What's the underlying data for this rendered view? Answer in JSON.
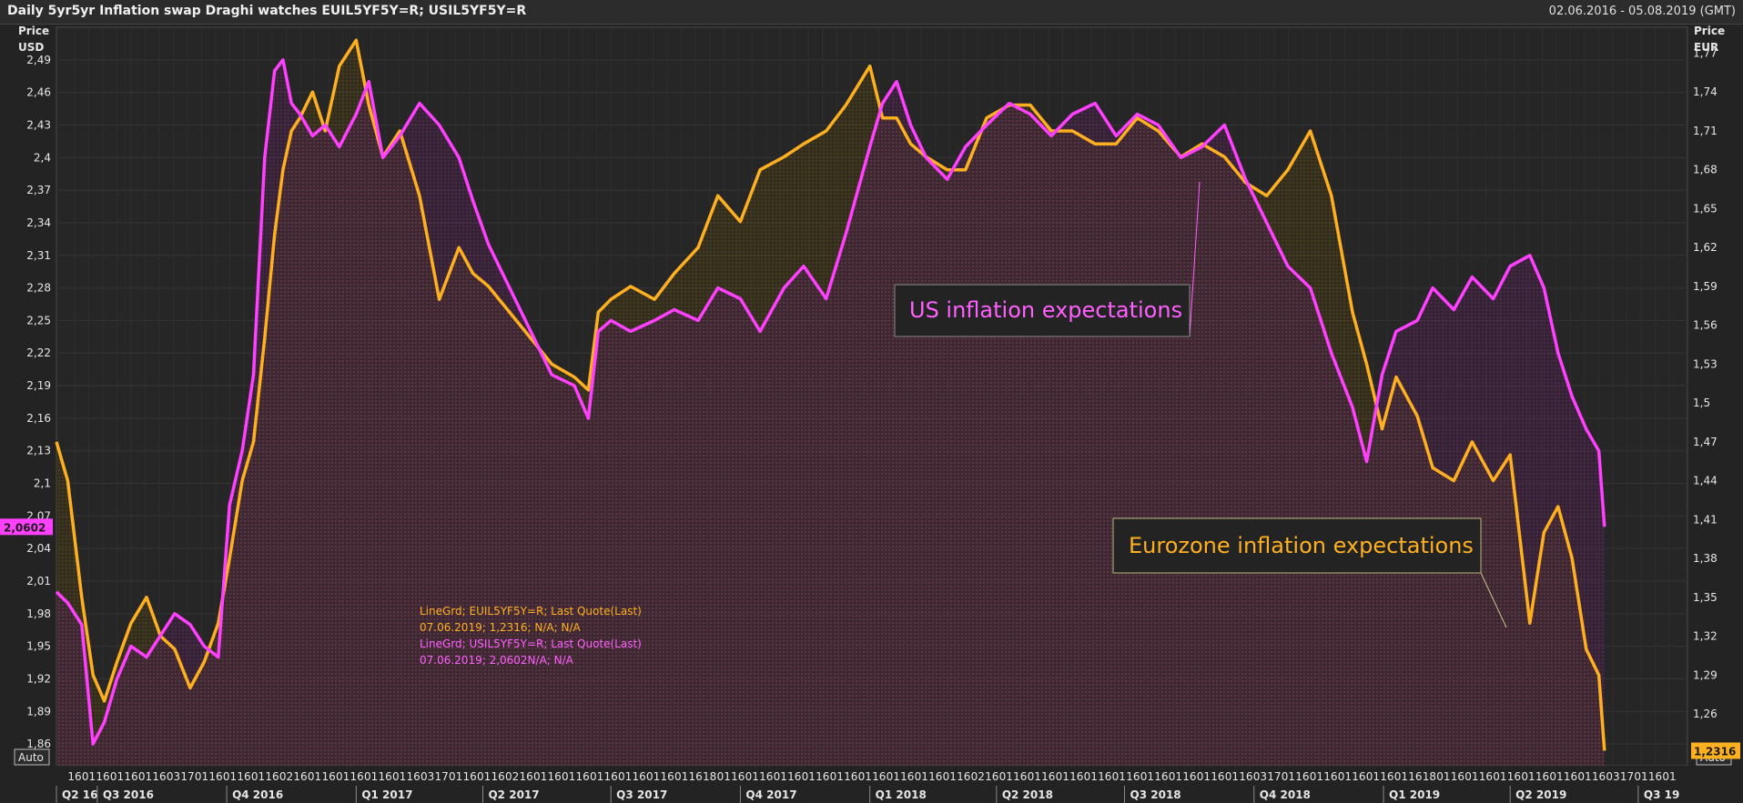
{
  "header": {
    "title": "Daily 5yr5yr Inflation swap Draghi watches EUIL5YF5Y=R; USIL5YF5Y=R",
    "date_range": "02.06.2016 - 05.08.2019 (GMT)"
  },
  "axes": {
    "left_label_1": "Price",
    "left_label_2": "USD",
    "right_label_1": "Price",
    "right_label_2": "EUR",
    "auto_left": "Auto",
    "auto_right": "Auto"
  },
  "legend": {
    "eu_line1": "LineGrd; EUIL5YF5Y=R; Last Quote(Last)",
    "eu_line2": "07.06.2019; 1,2316; N/A; N/A",
    "us_line1": "LineGrd; USIL5YF5Y=R; Last Quote(Last)",
    "us_line2": "07.06.2019; 2,0602N/A; N/A"
  },
  "annotations": {
    "us": "US inflation expectations",
    "eu": "Eurozone inflation expectations"
  },
  "colors": {
    "background": "#232323",
    "grid": "#3a3a3a",
    "us_series": "#ff40ff",
    "eu_series": "#ffb020",
    "axis_text": "#e6e6e6"
  },
  "chart_data": {
    "type": "line",
    "title": "Daily 5yr5yr Inflation swap Draghi watches EUIL5YF5Y=R; USIL5YF5Y=R",
    "y_left": {
      "label": "Price USD",
      "range": [
        1.84,
        2.52
      ],
      "ticks": [
        "1,86",
        "1,89",
        "1,92",
        "1,95",
        "1,98",
        "2,01",
        "2,04",
        "2,07",
        "2,1",
        "2,13",
        "2,16",
        "2,19",
        "2,22",
        "2,25",
        "2,28",
        "2,31",
        "2,34",
        "2,37",
        "2,4",
        "2,43",
        "2,46",
        "2,49"
      ]
    },
    "y_right": {
      "label": "Price EUR",
      "range": [
        1.22,
        1.79
      ],
      "ticks": [
        "1,26",
        "1,29",
        "1,32",
        "1,35",
        "1,38",
        "1,41",
        "1,44",
        "1,47",
        "1,5",
        "1,53",
        "1,56",
        "1,59",
        "1,62",
        "1,65",
        "1,68",
        "1,71",
        "1,74",
        "1,77"
      ]
    },
    "x_range": [
      "2016-06-02",
      "2019-08-05"
    ],
    "x_day_ticks": [
      "16",
      "01",
      "16",
      "01",
      "16",
      "01",
      "16",
      "03",
      "17",
      "01",
      "16",
      "01",
      "16",
      "01",
      "16",
      "02",
      "16",
      "01",
      "16",
      "01",
      "16",
      "01",
      "16",
      "01",
      "16",
      "03",
      "17",
      "01",
      "16",
      "01",
      "16",
      "02",
      "16",
      "01",
      "16",
      "01",
      "16",
      "01",
      "16",
      "01",
      "16",
      "01",
      "16",
      "01",
      "16",
      "18",
      "01",
      "16",
      "01",
      "16",
      "01",
      "16",
      "01",
      "16",
      "01",
      "16",
      "01",
      "16",
      "01",
      "16",
      "01",
      "16",
      "01",
      "16",
      "02",
      "16",
      "01",
      "16",
      "01",
      "16",
      "01",
      "16",
      "01",
      "16",
      "01",
      "16",
      "01",
      "16",
      "01",
      "16",
      "01",
      "16",
      "01",
      "16",
      "03",
      "17",
      "01",
      "16",
      "01",
      "16",
      "01",
      "16",
      "01",
      "16",
      "01",
      "16",
      "18",
      "01",
      "16",
      "01",
      "16",
      "01",
      "16",
      "01",
      "16",
      "01",
      "16",
      "01",
      "16",
      "03",
      "17",
      "01",
      "16",
      "01"
    ],
    "x_quarter_ticks": [
      {
        "label": "Q2 16",
        "date": "2016-06-02"
      },
      {
        "label": "Q3 2016",
        "date": "2016-07-01"
      },
      {
        "label": "Q4 2016",
        "date": "2016-10-01"
      },
      {
        "label": "Q1 2017",
        "date": "2017-01-01"
      },
      {
        "label": "Q2 2017",
        "date": "2017-04-01"
      },
      {
        "label": "Q3 2017",
        "date": "2017-07-01"
      },
      {
        "label": "Q4 2017",
        "date": "2017-10-01"
      },
      {
        "label": "Q1 2018",
        "date": "2018-01-01"
      },
      {
        "label": "Q2 2018",
        "date": "2018-04-01"
      },
      {
        "label": "Q3 2018",
        "date": "2018-07-01"
      },
      {
        "label": "Q4 2018",
        "date": "2018-10-01"
      },
      {
        "label": "Q1 2019",
        "date": "2019-01-01"
      },
      {
        "label": "Q2 2019",
        "date": "2019-04-01"
      },
      {
        "label": "Q3 19",
        "date": "2019-07-01"
      }
    ],
    "last_values": {
      "us": "2,0602",
      "eu": "1,2316"
    },
    "series": [
      {
        "name": "USIL5YF5Y=R",
        "axis": "left",
        "dates": [
          "2016-06-02",
          "2016-06-10",
          "2016-06-20",
          "2016-06-28",
          "2016-07-06",
          "2016-07-15",
          "2016-07-25",
          "2016-08-05",
          "2016-08-15",
          "2016-08-25",
          "2016-09-05",
          "2016-09-15",
          "2016-09-25",
          "2016-10-03",
          "2016-10-12",
          "2016-10-20",
          "2016-10-28",
          "2016-11-04",
          "2016-11-10",
          "2016-11-16",
          "2016-11-22",
          "2016-12-01",
          "2016-12-10",
          "2016-12-20",
          "2017-01-01",
          "2017-01-10",
          "2017-01-20",
          "2017-02-01",
          "2017-02-15",
          "2017-03-01",
          "2017-03-15",
          "2017-03-25",
          "2017-04-05",
          "2017-04-20",
          "2017-05-05",
          "2017-05-20",
          "2017-06-05",
          "2017-06-15",
          "2017-06-22",
          "2017-07-01",
          "2017-07-15",
          "2017-08-01",
          "2017-08-15",
          "2017-09-01",
          "2017-09-15",
          "2017-10-01",
          "2017-10-15",
          "2017-11-01",
          "2017-11-15",
          "2017-12-01",
          "2017-12-15",
          "2018-01-01",
          "2018-01-10",
          "2018-01-20",
          "2018-01-30",
          "2018-02-10",
          "2018-02-25",
          "2018-03-10",
          "2018-03-25",
          "2018-04-10",
          "2018-04-25",
          "2018-05-10",
          "2018-05-25",
          "2018-06-10",
          "2018-06-25",
          "2018-07-10",
          "2018-07-25",
          "2018-08-10",
          "2018-08-25",
          "2018-09-10",
          "2018-09-25",
          "2018-10-10",
          "2018-10-25",
          "2018-11-10",
          "2018-11-25",
          "2018-12-10",
          "2018-12-20",
          "2018-12-31",
          "2019-01-10",
          "2019-01-25",
          "2019-02-05",
          "2019-02-20",
          "2019-03-05",
          "2019-03-20",
          "2019-04-01",
          "2019-04-15",
          "2019-04-25",
          "2019-05-05",
          "2019-05-15",
          "2019-05-25",
          "2019-06-03",
          "2019-06-07"
        ],
        "values": [
          2.0,
          1.99,
          1.97,
          1.86,
          1.88,
          1.92,
          1.95,
          1.94,
          1.96,
          1.98,
          1.97,
          1.95,
          1.94,
          2.08,
          2.13,
          2.2,
          2.4,
          2.48,
          2.49,
          2.45,
          2.44,
          2.42,
          2.43,
          2.41,
          2.44,
          2.47,
          2.4,
          2.42,
          2.45,
          2.43,
          2.4,
          2.36,
          2.32,
          2.28,
          2.24,
          2.2,
          2.19,
          2.16,
          2.24,
          2.25,
          2.24,
          2.25,
          2.26,
          2.25,
          2.28,
          2.27,
          2.24,
          2.28,
          2.3,
          2.27,
          2.33,
          2.41,
          2.45,
          2.47,
          2.43,
          2.4,
          2.38,
          2.41,
          2.43,
          2.45,
          2.44,
          2.42,
          2.44,
          2.45,
          2.42,
          2.44,
          2.43,
          2.4,
          2.41,
          2.43,
          2.38,
          2.34,
          2.3,
          2.28,
          2.22,
          2.17,
          2.12,
          2.2,
          2.24,
          2.25,
          2.28,
          2.26,
          2.29,
          2.27,
          2.3,
          2.31,
          2.28,
          2.22,
          2.18,
          2.15,
          2.13,
          2.06
        ]
      },
      {
        "name": "EUIL5YF5Y=R",
        "axis": "right",
        "dates": [
          "2016-06-02",
          "2016-06-10",
          "2016-06-20",
          "2016-06-28",
          "2016-07-06",
          "2016-07-15",
          "2016-07-25",
          "2016-08-05",
          "2016-08-15",
          "2016-08-25",
          "2016-09-05",
          "2016-09-15",
          "2016-09-25",
          "2016-10-03",
          "2016-10-12",
          "2016-10-20",
          "2016-10-28",
          "2016-11-04",
          "2016-11-10",
          "2016-11-16",
          "2016-11-22",
          "2016-12-01",
          "2016-12-10",
          "2016-12-20",
          "2017-01-01",
          "2017-01-10",
          "2017-01-20",
          "2017-02-01",
          "2017-02-15",
          "2017-03-01",
          "2017-03-15",
          "2017-03-25",
          "2017-04-05",
          "2017-04-20",
          "2017-05-05",
          "2017-05-20",
          "2017-06-05",
          "2017-06-15",
          "2017-06-22",
          "2017-07-01",
          "2017-07-15",
          "2017-08-01",
          "2017-08-15",
          "2017-09-01",
          "2017-09-15",
          "2017-10-01",
          "2017-10-15",
          "2017-11-01",
          "2017-11-15",
          "2017-12-01",
          "2017-12-15",
          "2018-01-01",
          "2018-01-10",
          "2018-01-20",
          "2018-01-30",
          "2018-02-10",
          "2018-02-25",
          "2018-03-10",
          "2018-03-25",
          "2018-04-10",
          "2018-04-25",
          "2018-05-10",
          "2018-05-25",
          "2018-06-10",
          "2018-06-25",
          "2018-07-10",
          "2018-07-25",
          "2018-08-10",
          "2018-08-25",
          "2018-09-10",
          "2018-09-25",
          "2018-10-10",
          "2018-10-25",
          "2018-11-10",
          "2018-11-25",
          "2018-12-10",
          "2018-12-20",
          "2018-12-31",
          "2019-01-10",
          "2019-01-25",
          "2019-02-05",
          "2019-02-20",
          "2019-03-05",
          "2019-03-20",
          "2019-04-01",
          "2019-04-15",
          "2019-04-25",
          "2019-05-05",
          "2019-05-15",
          "2019-05-25",
          "2019-06-03",
          "2019-06-07"
        ],
        "values": [
          1.47,
          1.44,
          1.35,
          1.29,
          1.27,
          1.3,
          1.33,
          1.35,
          1.32,
          1.31,
          1.28,
          1.3,
          1.33,
          1.38,
          1.44,
          1.47,
          1.55,
          1.63,
          1.68,
          1.71,
          1.72,
          1.74,
          1.71,
          1.76,
          1.78,
          1.73,
          1.69,
          1.71,
          1.66,
          1.58,
          1.62,
          1.6,
          1.59,
          1.57,
          1.55,
          1.53,
          1.52,
          1.51,
          1.57,
          1.58,
          1.59,
          1.58,
          1.6,
          1.62,
          1.66,
          1.64,
          1.68,
          1.69,
          1.7,
          1.71,
          1.73,
          1.76,
          1.72,
          1.72,
          1.7,
          1.69,
          1.68,
          1.68,
          1.72,
          1.73,
          1.73,
          1.71,
          1.71,
          1.7,
          1.7,
          1.72,
          1.71,
          1.69,
          1.7,
          1.69,
          1.67,
          1.66,
          1.68,
          1.71,
          1.66,
          1.57,
          1.53,
          1.48,
          1.52,
          1.49,
          1.45,
          1.44,
          1.47,
          1.44,
          1.46,
          1.33,
          1.4,
          1.42,
          1.38,
          1.31,
          1.29,
          1.2316
        ]
      }
    ]
  }
}
